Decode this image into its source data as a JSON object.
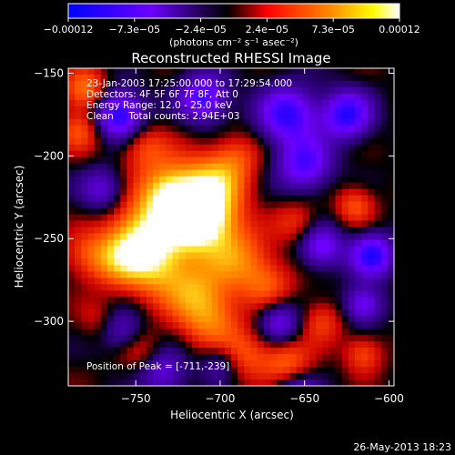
{
  "chart_data": {
    "type": "heatmap",
    "title": "Reconstructed RHESSI Image",
    "xlabel": "Heliocentric X (arcsec)",
    "ylabel": "Heliocentric Y (arcsec)",
    "xlim": [
      -790,
      -597
    ],
    "ylim": [
      -339,
      -147
    ],
    "xticks": [
      -750,
      -700,
      -650,
      -600
    ],
    "xtick_labels": [
      "-750",
      "-700",
      "-650",
      "-600"
    ],
    "yticks": [
      -150,
      -200,
      -250,
      -300
    ],
    "ytick_labels": [
      "-150",
      "-200",
      "-250",
      "-300"
    ],
    "colorbar": {
      "range": [
        -0.00012,
        0.00012
      ],
      "tick_labels": [
        "-0.00012",
        "-7.3e-05",
        "-2.4e-05",
        "2.4e-05",
        "7.3e-05",
        "0.00012"
      ],
      "unit_label": "(photons cm⁻² s⁻¹ asec⁻²)",
      "colors": [
        "#0000ff",
        "#7a00ff",
        "#000000",
        "#ff0000",
        "#ff8c00",
        "#ffff00",
        "#ffffff"
      ]
    },
    "peak": [
      -711,
      -239
    ],
    "grid": false
  },
  "info": {
    "time_range": "23-Jan-2003 17:25:00.000 to 17:29:54.000",
    "detectors": "Detectors: 4F 5F 6F 7F 8F, Att 0",
    "energy": "Energy Range: 12.0 - 25.0 keV",
    "clean": "Clean     Total counts: 2.94E+03",
    "peak_label": "Position of Peak = [-711,-239]"
  },
  "footer_date": "26-May-2013 18:23"
}
